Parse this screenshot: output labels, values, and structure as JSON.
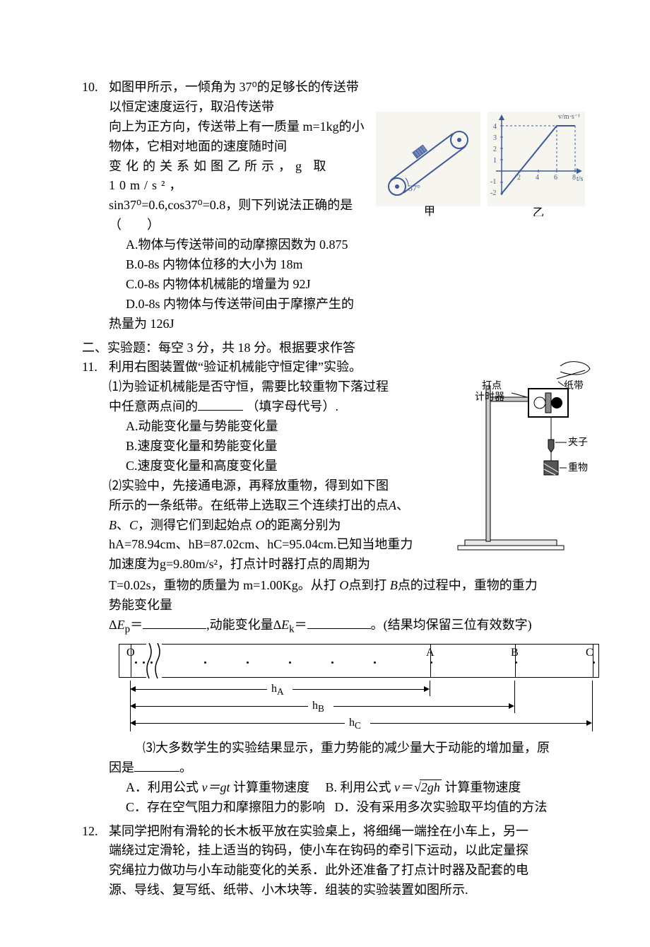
{
  "q10": {
    "number": "10.",
    "stem_l1": "如图甲所示，一倾角为 37⁰的足够长的传送带以恒定速度运行，取沿传送带",
    "stem_l2": "向上为正方向，传送带上有一质量 m=1kg的小物体，它相对地面的速度随时间",
    "stem_l3": "变化的关系如图乙所示，g 取 10m/s²，",
    "stem_l4": "sin37⁰=0.6,cos37⁰=0.8，则下列说法正确的是",
    "stem_l5": "（　　）",
    "optA": "A.物体与传送带间的动摩擦因数为 0.875",
    "optB": "B.0-8s 内物体位移的大小为 18m",
    "optC": "C.0-8s 内物体机械能的增量为 92J",
    "optD": "D.0-8s 内物体与传送带间由于摩擦产生的",
    "optD2": "热量为 126J",
    "fig": {
      "left_label": "甲",
      "right_label": "乙",
      "angle_label": "37°",
      "y_axis": "v/m·s⁻¹",
      "x_axis": "t/s",
      "y_ticks": [
        "4",
        "3",
        "2",
        "1",
        "-1",
        "-2"
      ],
      "x_ticks": [
        "2",
        "4",
        "6",
        "8"
      ],
      "colors": {
        "line": "#3a5a9a",
        "bg": "#f7f5ef"
      }
    }
  },
  "section2": "二、实验题：每空 3 分，共 18 分。根据要求作答",
  "q11": {
    "number": "11.",
    "stem": "利用右图装置做“验证机械能守恒定律”实验。",
    "p1_l1": "⑴为验证机械能是否守恒，需要比较重物下落过程",
    "p1_l2": "中任意两点间的",
    "p1_l2b": "（填字母代号）.",
    "p1_optA": "A.动能变化量与势能变化量",
    "p1_optB": "B.速度变化量和势能变化量",
    "p1_optC": "C.速度变化量和高度变化量",
    "p2_l1": "⑵实验中，先接通电源，再释放重物，得到如下图",
    "p2_l2": "所示的一条纸带。在纸带上选取三个连续打出的点",
    "p2_l2i": "A",
    "p2_l2t": "、",
    "p2_l3a": "B",
    "p2_l3b": "、",
    "p2_l3c": "C",
    "p2_l3d": "，测得它们到起始点",
    "p2_l3e": " O",
    "p2_l3f": "的距离分别为",
    "p2_l4": "hA=78.94cm、hB=87.02cm、hC=95.04cm.已知当地重力",
    "p2_l5": "加速度为g=9.80m/s²，打点计时器打点的周期为",
    "p2_l6a": "T=0.02s，重物的质量为 m=1.00Kg。从打",
    "p2_l6o": " O",
    "p2_l6b": "点到打",
    "p2_l6bb": " B",
    "p2_l6c": "点的过程中，重物的重力",
    "p2_l7": "势能变化量",
    "p2_l8a": "ΔE",
    "p2_l8sub": "p",
    "p2_l8eq": "＝",
    "p2_l8mid": ",动能变化量",
    "p2_l8b": "ΔE",
    "p2_l8sub2": "k",
    "p2_l8eq2": "＝",
    "p2_l8end": "。(结果均保留三位有效数字)",
    "tape": {
      "O": "O",
      "A": "A",
      "B": "B",
      "C": "C",
      "hA": "hA",
      "hB": "hB",
      "hC": "hC",
      "posO": 16,
      "posA": 440,
      "posB": 560,
      "posC": 670,
      "dots": [
        22,
        33,
        44,
        120,
        180,
        240,
        300,
        360,
        440,
        560,
        670
      ]
    },
    "p3_l1": "⑶大多数学生的实验结果显示，重力势能的减少量大于动能的增加量，原",
    "p3_l2": "因是",
    "p3_l2b": "。",
    "p3_optA_a": "A．利用公式",
    "p3_optA_f": " v＝gt ",
    "p3_optA_b": "计算重物速度",
    "p3_optB_a": "B. 利用公式",
    "p3_optB_f": " v＝",
    "p3_optB_rad": "2gh",
    "p3_optB_b": " 计算重物速度",
    "p3_optC": "C．存在空气阻力和摩擦阻力的影响",
    "p3_optD": "D．没有采用多次实验取平均值的方法",
    "app_labels": {
      "timer": "打点",
      "timer2": "计时器",
      "tape": "纸带",
      "clip": "夹子",
      "weight": "重物"
    }
  },
  "q12": {
    "number": "12.",
    "l1": "某同学把附有滑轮的长木板平放在实验桌上，将细绳一端拴在小车上，另一",
    "l2": "端绕过定滑轮，挂上适当的钩码，使小车在钩码的牵引下运动，以此定量探",
    "l3": "究绳拉力做功与小车动能变化的关系．此外还准备了打点计时器及配套的电",
    "l4": "源、导线、复写纸、纸带、小木块等．组装的实验装置如图所示."
  }
}
